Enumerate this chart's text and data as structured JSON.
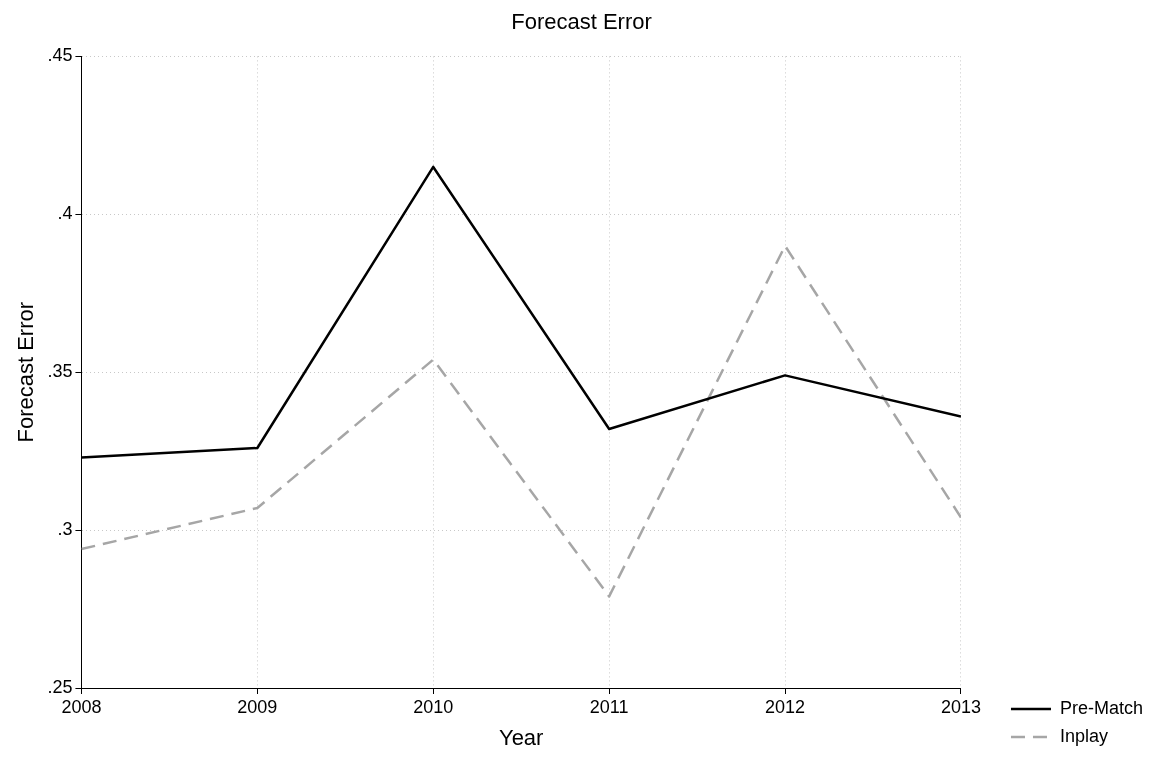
{
  "chart_data": {
    "type": "line",
    "title": "Forecast Error",
    "xlabel": "Year",
    "ylabel": "Forecast Error",
    "x": [
      2008,
      2009,
      2010,
      2011,
      2012,
      2013
    ],
    "series": [
      {
        "name": "Pre-Match",
        "color": "#000000",
        "line_style": "solid",
        "values": [
          0.323,
          0.326,
          0.415,
          0.332,
          0.349,
          0.336
        ]
      },
      {
        "name": "Inplay",
        "color": "#a6a6a6",
        "line_style": "dashed",
        "values": [
          0.294,
          0.307,
          0.354,
          0.279,
          0.39,
          0.304
        ]
      }
    ],
    "xlim": [
      2008,
      2013
    ],
    "xticks": [
      2008,
      2009,
      2010,
      2011,
      2012,
      2013
    ],
    "ylim": [
      0.25,
      0.45
    ],
    "yticks": [
      {
        "value": 0.25,
        "label": ".25"
      },
      {
        "value": 0.3,
        "label": ".3"
      },
      {
        "value": 0.35,
        "label": ".35"
      },
      {
        "value": 0.4,
        "label": ".4"
      },
      {
        "value": 0.45,
        "label": ".45"
      }
    ],
    "grid": true,
    "legend": "bottom right",
    "marker": "none"
  }
}
